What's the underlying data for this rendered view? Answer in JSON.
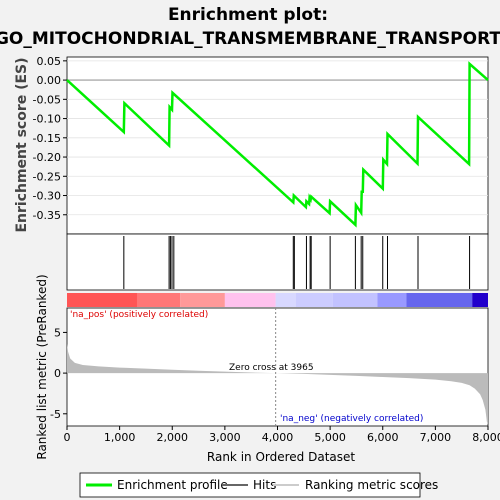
{
  "title": {
    "line1": "Enrichment plot:",
    "line2": "GO_MITOCHONDRIAL_TRANSMEMBRANE_TRANSPORT"
  },
  "colors": {
    "enrichment_line": "#00ee00",
    "hits": "#000000",
    "ranking_fill": "#bbbbbb",
    "pos_text": "#dd0000",
    "neg_text": "#0000cc",
    "zero_line": "#888888",
    "panel_bg": "#ffffff",
    "page_bg": "#f2f2f2"
  },
  "chart_data": [
    {
      "type": "line",
      "ylabel": "Enrichment score (ES)",
      "ylim": [
        -0.4,
        0.06
      ],
      "yticks": [
        0.05,
        0.0,
        -0.05,
        -0.1,
        -0.15,
        -0.2,
        -0.25,
        -0.3,
        -0.35
      ],
      "ytick_labels": [
        "0.05",
        "0.00",
        "-0.05",
        "-0.10",
        "-0.15",
        "-0.20",
        "-0.25",
        "-0.30",
        "-0.35"
      ],
      "grid": true,
      "series": [
        {
          "name": "Enrichment profile",
          "x": [
            0,
            1080,
            1090,
            1940,
            1950,
            1995,
            2005,
            4300,
            4310,
            4540,
            4550,
            4600,
            4610,
            4630,
            4640,
            4990,
            5000,
            5480,
            5490,
            5590,
            5600,
            5620,
            5630,
            6000,
            6010,
            6080,
            6090,
            6660,
            6670,
            7640,
            7650,
            8000
          ],
          "y": [
            0.0,
            -0.135,
            -0.06,
            -0.17,
            -0.07,
            -0.077,
            -0.033,
            -0.318,
            -0.3,
            -0.33,
            -0.315,
            -0.322,
            -0.305,
            -0.31,
            -0.303,
            -0.346,
            -0.315,
            -0.376,
            -0.325,
            -0.345,
            -0.29,
            -0.29,
            -0.233,
            -0.282,
            -0.207,
            -0.218,
            -0.14,
            -0.217,
            -0.096,
            -0.218,
            0.042,
            0.0
          ]
        }
      ]
    },
    {
      "type": "scatter",
      "name": "Hits",
      "hit_ranks": [
        1080,
        1940,
        1965,
        1995,
        2030,
        4300,
        4320,
        4550,
        4620,
        4640,
        5000,
        5480,
        5590,
        5620,
        6000,
        6090,
        6670,
        7650
      ]
    },
    {
      "type": "area",
      "name": "Ranking metric scores",
      "ylabel": "Ranked list metric (PreRanked)",
      "xlabel": "Rank in Ordered Dataset",
      "xlim": [
        0,
        8000
      ],
      "ylim": [
        -6.5,
        8
      ],
      "yticks": [
        5,
        0,
        -5
      ],
      "xticks": [
        0,
        1000,
        2000,
        3000,
        4000,
        5000,
        6000,
        7000,
        8000
      ],
      "xtick_labels": [
        "0",
        "1,000",
        "2,000",
        "3,000",
        "4,000",
        "5,000",
        "6,000",
        "7,000",
        "8,000"
      ],
      "x": [
        0,
        20,
        60,
        150,
        300,
        600,
        1000,
        1500,
        2000,
        2500,
        3000,
        3500,
        3965,
        4500,
        5000,
        5500,
        6000,
        6500,
        7000,
        7300,
        7500,
        7650,
        7750,
        7850,
        7900,
        7950,
        7980,
        8000
      ],
      "y": [
        3.6,
        2.6,
        1.8,
        1.25,
        1.0,
        0.82,
        0.68,
        0.55,
        0.42,
        0.3,
        0.18,
        0.08,
        0.0,
        -0.1,
        -0.22,
        -0.34,
        -0.48,
        -0.62,
        -0.8,
        -1.0,
        -1.2,
        -1.5,
        -1.9,
        -2.6,
        -3.3,
        -4.5,
        -6.0,
        -6.3
      ],
      "annotations": {
        "zero_cross": "Zero cross at 3965",
        "pos_label": "'na_pos' (positively correlated)",
        "neg_label": "'na_neg' (negatively correlated)"
      }
    }
  ],
  "heatbar": {
    "segments": [
      {
        "from": 0,
        "to": 1330,
        "color": "#ff5555"
      },
      {
        "from": 1330,
        "to": 2150,
        "color": "#ff7777"
      },
      {
        "from": 2150,
        "to": 3000,
        "color": "#ff9999"
      },
      {
        "from": 3000,
        "to": 3965,
        "color": "#ffc2ee"
      },
      {
        "from": 3965,
        "to": 4350,
        "color": "#d8d8ff"
      },
      {
        "from": 4350,
        "to": 5050,
        "color": "#ccccff"
      },
      {
        "from": 5050,
        "to": 5900,
        "color": "#c2c2ff"
      },
      {
        "from": 5900,
        "to": 6450,
        "color": "#9999ff"
      },
      {
        "from": 6450,
        "to": 7700,
        "color": "#6666ee"
      },
      {
        "from": 7700,
        "to": 8000,
        "color": "#2200cc"
      }
    ]
  },
  "legend": {
    "items": [
      {
        "label": "Enrichment profile",
        "color": "#00ee00"
      },
      {
        "label": "Hits",
        "color": "#666666"
      },
      {
        "label": "Ranking metric scores",
        "color": "#cccccc"
      }
    ]
  }
}
